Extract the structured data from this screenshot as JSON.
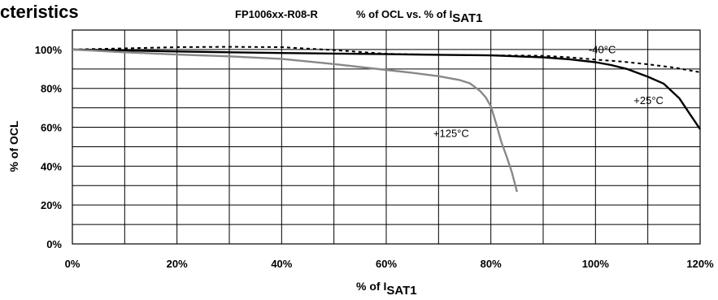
{
  "header_fragment": "cteristics",
  "chart_data": {
    "type": "line",
    "title_part": "FP1006xx-R08-R",
    "title_main": "% of OCL vs. % of I",
    "title_sub": "SAT1",
    "xlabel_main": "% of I",
    "xlabel_sub": "SAT1",
    "ylabel": "% of OCL",
    "xlim": [
      0,
      120
    ],
    "ylim": [
      0,
      100
    ],
    "x_ticks": [
      "0%",
      "20%",
      "40%",
      "60%",
      "80%",
      "100%",
      "120%"
    ],
    "y_ticks": [
      "0%",
      "20%",
      "40%",
      "60%",
      "80%",
      "100%"
    ],
    "grid": true,
    "series": [
      {
        "name": "-40°C",
        "style": "dashed",
        "color": "#000000",
        "x": [
          0,
          10,
          20,
          30,
          40,
          50,
          60,
          70,
          80,
          90,
          95,
          100,
          105,
          110,
          115,
          120
        ],
        "y": [
          100.0,
          100.6,
          101.2,
          101.4,
          101.2,
          99.7,
          97.8,
          97.3,
          97.0,
          96.8,
          96.0,
          94.8,
          93.8,
          92.4,
          90.7,
          88.3
        ]
      },
      {
        "name": "+25°C",
        "style": "solid",
        "color": "#000000",
        "x": [
          0,
          10,
          20,
          30,
          40,
          50,
          60,
          70,
          80,
          90,
          95,
          100,
          103,
          106,
          110,
          113,
          116,
          118,
          120
        ],
        "y": [
          100.0,
          99.5,
          99.0,
          98.6,
          98.2,
          97.9,
          97.6,
          97.3,
          97.0,
          96.0,
          95.0,
          93.5,
          92.0,
          90.0,
          86.0,
          82.5,
          75.0,
          67.0,
          59.0
        ]
      },
      {
        "name": "+125°C",
        "style": "solid",
        "color": "#888888",
        "x": [
          0,
          10,
          20,
          30,
          40,
          50,
          60,
          65,
          70,
          74,
          76,
          77,
          78,
          79,
          80,
          81,
          82,
          83,
          84,
          85
        ],
        "y": [
          100.0,
          98.6,
          97.4,
          96.5,
          95.2,
          92.5,
          89.5,
          88.0,
          86.3,
          84.3,
          82.6,
          80.6,
          78.5,
          75.5,
          70.8,
          62.0,
          52.5,
          45.0,
          37.0,
          26.8
        ]
      }
    ]
  }
}
